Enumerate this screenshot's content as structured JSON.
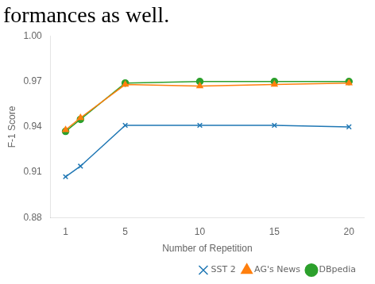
{
  "chart_data": {
    "type": "line",
    "title": "formances as well.",
    "x": [
      1,
      2,
      5,
      10,
      15,
      20
    ],
    "series": [
      {
        "name": "SST 2",
        "color": "#1f77b4",
        "marker": "x",
        "values": [
          0.907,
          0.914,
          0.941,
          0.941,
          0.941,
          0.94
        ]
      },
      {
        "name": "AG's News",
        "color": "#ff7f0e",
        "marker": "triangle",
        "values": [
          0.938,
          0.946,
          0.968,
          0.967,
          0.968,
          0.969
        ]
      },
      {
        "name": "DBpedia",
        "color": "#2ca02c",
        "marker": "circle",
        "values": [
          0.937,
          0.945,
          0.969,
          0.97,
          0.97,
          0.97
        ]
      }
    ],
    "xlabel": "Number of Repetition",
    "ylabel": "F-1 Score",
    "xlim": [
      0,
      21
    ],
    "ylim": [
      0.88,
      1.0
    ],
    "xticks": [
      1,
      5,
      10,
      15,
      20
    ],
    "yticks": [
      0.88,
      0.91,
      0.94,
      0.97,
      {
        "value": 1.0,
        "label": "1.00"
      }
    ],
    "grid": false,
    "legend": "lower right"
  }
}
